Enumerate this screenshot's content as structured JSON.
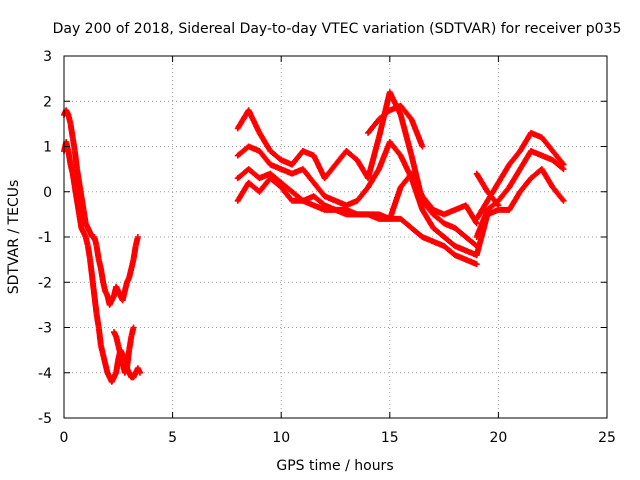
{
  "chart_data": {
    "type": "scatter",
    "title": "Day 200 of 2018, Sidereal Day-to-day VTEC variation (SDTVAR) for receiver p035",
    "xlabel": "GPS time / hours",
    "ylabel": "SDTVAR / TECUs",
    "xlim": [
      0,
      25
    ],
    "ylim": [
      -5,
      3
    ],
    "xticks": [
      0,
      5,
      10,
      15,
      20,
      25
    ],
    "yticks": [
      -5,
      -4,
      -3,
      -2,
      -1,
      0,
      1,
      2,
      3
    ],
    "grid": true,
    "marker": "+",
    "color": "#ff0000",
    "series": [
      {
        "name": "seg-a1",
        "x": [
          0.0,
          0.1,
          0.2,
          0.3,
          0.4,
          0.5,
          0.6,
          0.7,
          0.8,
          0.9,
          1.0,
          1.1,
          1.2,
          1.3,
          1.4,
          1.5,
          1.6,
          1.7,
          1.8,
          1.9,
          2.0,
          2.1,
          2.2,
          2.3,
          2.4,
          2.5,
          2.6,
          2.7,
          2.8,
          2.9,
          3.0,
          3.1,
          3.2,
          3.3,
          3.4
        ],
        "y": [
          1.7,
          1.8,
          1.7,
          1.5,
          1.2,
          0.9,
          0.5,
          0.2,
          -0.1,
          -0.4,
          -0.7,
          -0.8,
          -0.9,
          -1.0,
          -1.0,
          -1.2,
          -1.5,
          -1.7,
          -2.0,
          -2.2,
          -2.3,
          -2.5,
          -2.4,
          -2.3,
          -2.1,
          -2.2,
          -2.3,
          -2.4,
          -2.2,
          -2.0,
          -1.9,
          -1.7,
          -1.5,
          -1.2,
          -1.0
        ]
      },
      {
        "name": "seg-a2",
        "x": [
          0.0,
          0.1,
          0.2,
          0.3,
          0.4,
          0.5,
          0.6,
          0.7,
          0.8,
          0.9,
          1.0,
          1.1,
          1.2,
          1.3,
          1.4,
          1.5,
          1.6,
          1.7,
          1.8,
          1.9,
          2.0,
          2.1,
          2.2,
          2.3,
          2.4,
          2.5,
          2.6,
          2.7,
          2.8,
          2.9,
          3.0,
          3.1,
          3.2,
          3.3,
          3.4,
          3.5
        ],
        "y": [
          0.9,
          1.1,
          0.9,
          0.6,
          0.4,
          0.1,
          -0.2,
          -0.5,
          -0.8,
          -0.9,
          -1.0,
          -1.2,
          -1.5,
          -1.9,
          -2.3,
          -2.7,
          -3.0,
          -3.4,
          -3.6,
          -3.8,
          -4.0,
          -4.1,
          -4.2,
          -4.1,
          -4.0,
          -3.7,
          -3.5,
          -3.6,
          -3.8,
          -3.9,
          -4.0,
          -4.1,
          -4.1,
          -4.0,
          -3.9,
          -4.0
        ]
      },
      {
        "name": "seg-a3",
        "x": [
          2.3,
          2.4,
          2.5,
          2.6,
          2.7,
          2.8,
          2.9,
          3.0,
          3.1,
          3.2
        ],
        "y": [
          -3.1,
          -3.2,
          -3.4,
          -3.6,
          -3.8,
          -4.0,
          -3.9,
          -3.5,
          -3.2,
          -3.0
        ]
      },
      {
        "name": "seg-b1",
        "x": [
          8.0,
          8.5,
          9.0,
          9.5,
          10.0,
          10.5,
          11.0,
          11.5,
          12.0,
          12.5,
          13.0,
          13.5,
          14.0,
          14.5,
          15.0,
          15.5,
          16.0,
          16.5,
          17.0,
          17.5,
          18.0,
          18.5,
          19.0
        ],
        "y": [
          0.3,
          0.5,
          0.3,
          0.4,
          0.2,
          0.0,
          -0.2,
          -0.3,
          -0.4,
          -0.4,
          -0.5,
          -0.5,
          -0.5,
          -0.6,
          -0.6,
          -0.6,
          -0.8,
          -1.0,
          -1.1,
          -1.2,
          -1.4,
          -1.5,
          -1.6
        ]
      },
      {
        "name": "seg-b2",
        "x": [
          8.0,
          8.5,
          9.0,
          9.5,
          10.0,
          10.5,
          11.0,
          11.5,
          12.0,
          12.5,
          13.0,
          13.5,
          14.0,
          14.5,
          15.0,
          15.5,
          16.0,
          16.5,
          17.0,
          17.5,
          18.0,
          18.5,
          19.0
        ],
        "y": [
          0.8,
          1.0,
          0.9,
          0.6,
          0.5,
          0.4,
          0.5,
          0.2,
          -0.1,
          -0.2,
          -0.3,
          -0.2,
          0.1,
          0.5,
          1.1,
          0.8,
          0.3,
          -0.4,
          -0.8,
          -1.0,
          -1.2,
          -1.3,
          -1.4
        ]
      },
      {
        "name": "seg-b3",
        "x": [
          8.0,
          8.5,
          9.0,
          9.5,
          10.0,
          10.5,
          11.0,
          11.5,
          12.0,
          12.5,
          13.0,
          13.5,
          14.0,
          14.5,
          15.0,
          15.5,
          16.0,
          16.5,
          17.0,
          17.5,
          18.0,
          18.5,
          19.0
        ],
        "y": [
          1.4,
          1.8,
          1.3,
          0.9,
          0.7,
          0.6,
          0.9,
          0.8,
          0.3,
          0.6,
          0.9,
          0.7,
          0.3,
          1.2,
          2.2,
          1.7,
          0.8,
          -0.2,
          -0.5,
          -0.7,
          -0.8,
          -1.0,
          -1.2
        ]
      },
      {
        "name": "seg-b4",
        "x": [
          8.0,
          8.5,
          9.0,
          9.5,
          10.0,
          10.5,
          11.0,
          11.5,
          12.0,
          12.5,
          13.0,
          13.5,
          14.0,
          14.5,
          15.0,
          15.5,
          16.0,
          16.5,
          17.0,
          17.5,
          18.0,
          18.5,
          19.0
        ],
        "y": [
          -0.2,
          0.2,
          0.0,
          0.3,
          0.1,
          -0.2,
          -0.2,
          -0.1,
          -0.3,
          -0.4,
          -0.4,
          -0.5,
          -0.5,
          -0.5,
          -0.6,
          0.1,
          0.4,
          -0.1,
          -0.4,
          -0.5,
          -0.4,
          -0.3,
          -0.7
        ]
      },
      {
        "name": "seg-b5",
        "x": [
          14.0,
          14.5,
          15.0,
          15.5,
          16.0,
          16.5
        ],
        "y": [
          1.3,
          1.6,
          1.8,
          1.9,
          1.6,
          1.0
        ]
      },
      {
        "name": "seg-c1",
        "x": [
          19.0,
          19.5,
          20.0,
          20.5,
          21.0,
          21.5,
          22.0,
          22.5,
          23.0
        ],
        "y": [
          -0.6,
          -0.2,
          0.2,
          0.6,
          0.9,
          1.3,
          1.2,
          0.9,
          0.6
        ]
      },
      {
        "name": "seg-c2",
        "x": [
          19.0,
          19.5,
          20.0,
          20.5,
          21.0,
          21.5,
          22.0,
          22.5,
          23.0
        ],
        "y": [
          -1.0,
          -0.4,
          -0.2,
          0.1,
          0.5,
          0.9,
          0.8,
          0.7,
          0.5
        ]
      },
      {
        "name": "seg-c3",
        "x": [
          19.0,
          19.5,
          20.0,
          20.5,
          21.0,
          21.5,
          22.0,
          22.5,
          23.0
        ],
        "y": [
          -1.4,
          -0.5,
          -0.4,
          -0.4,
          0.0,
          0.3,
          0.5,
          0.1,
          -0.2
        ]
      },
      {
        "name": "seg-c4",
        "x": [
          19.0,
          19.5,
          20.0
        ],
        "y": [
          0.4,
          0.0,
          -0.3
        ]
      }
    ]
  }
}
